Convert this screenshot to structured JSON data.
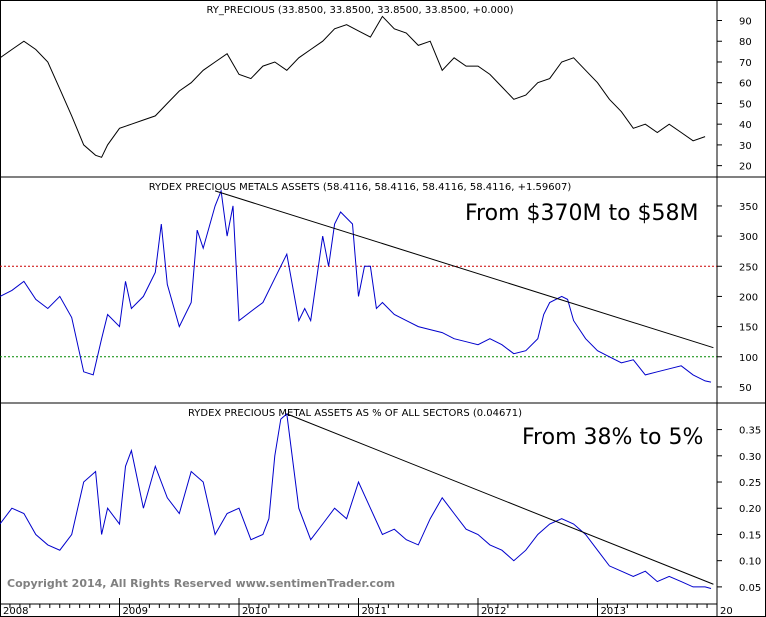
{
  "chart_data": [
    {
      "type": "line",
      "title": "RY_PRECIOUS (33.8500, 33.8500, 33.8500, 33.8500, +0.000)",
      "y_ticks": [
        20,
        30,
        40,
        50,
        60,
        70,
        80,
        90
      ],
      "ylim": [
        15,
        97
      ],
      "color": "#000000",
      "series": [
        {
          "x": [
            2008.0,
            2008.1,
            2008.2,
            2008.3,
            2008.4,
            2008.5,
            2008.6,
            2008.7,
            2008.8,
            2008.85,
            2008.9,
            2009.0,
            2009.1,
            2009.2,
            2009.3,
            2009.4,
            2009.5,
            2009.6,
            2009.7,
            2009.8,
            2009.9,
            2010.0,
            2010.1,
            2010.2,
            2010.3,
            2010.4,
            2010.5,
            2010.6,
            2010.7,
            2010.8,
            2010.9,
            2011.0,
            2011.1,
            2011.2,
            2011.3,
            2011.4,
            2011.5,
            2011.6,
            2011.7,
            2011.8,
            2011.9,
            2012.0,
            2012.1,
            2012.2,
            2012.3,
            2012.4,
            2012.5,
            2012.6,
            2012.7,
            2012.8,
            2012.9,
            2013.0,
            2013.1,
            2013.2,
            2013.3,
            2013.4,
            2013.5,
            2013.6,
            2013.7,
            2013.8,
            2013.9
          ],
          "values": [
            72,
            76,
            80,
            76,
            70,
            57,
            44,
            30,
            25,
            24,
            30,
            38,
            40,
            42,
            44,
            50,
            56,
            60,
            66,
            70,
            74,
            64,
            62,
            68,
            70,
            66,
            72,
            76,
            80,
            86,
            88,
            85,
            82,
            92,
            86,
            84,
            78,
            80,
            66,
            72,
            68,
            68,
            64,
            58,
            52,
            54,
            60,
            62,
            70,
            72,
            66,
            60,
            52,
            46,
            38,
            40,
            36,
            40,
            36,
            32,
            34
          ]
        }
      ]
    },
    {
      "type": "line",
      "title": "RYDEX PRECIOUS METALS ASSETS (58.4116, 58.4116, 58.4116, 58.4116, +1.59607)",
      "annotation": "From $370M to $58M",
      "y_ticks": [
        50,
        100,
        150,
        200,
        250,
        300,
        350
      ],
      "ylim": [
        25,
        393
      ],
      "reference_lines": [
        {
          "value": 250,
          "color": "#cc0000"
        },
        {
          "value": 100,
          "color": "#008800"
        }
      ],
      "trendline": {
        "x": [
          2009.8,
          2013.97
        ],
        "values": [
          375,
          115
        ]
      },
      "color": "#0000cc",
      "series": [
        {
          "x": [
            2008.0,
            2008.1,
            2008.2,
            2008.3,
            2008.4,
            2008.5,
            2008.6,
            2008.7,
            2008.78,
            2008.85,
            2008.9,
            2009.0,
            2009.05,
            2009.1,
            2009.2,
            2009.3,
            2009.35,
            2009.4,
            2009.5,
            2009.6,
            2009.65,
            2009.7,
            2009.8,
            2009.85,
            2009.9,
            2009.95,
            2010.0,
            2010.1,
            2010.2,
            2010.3,
            2010.4,
            2010.5,
            2010.55,
            2010.6,
            2010.7,
            2010.75,
            2010.8,
            2010.85,
            2010.95,
            2011.0,
            2011.05,
            2011.1,
            2011.15,
            2011.2,
            2011.3,
            2011.4,
            2011.5,
            2011.6,
            2011.7,
            2011.8,
            2011.9,
            2012.0,
            2012.1,
            2012.2,
            2012.3,
            2012.4,
            2012.5,
            2012.55,
            2012.6,
            2012.7,
            2012.75,
            2012.8,
            2012.9,
            2013.0,
            2013.1,
            2013.2,
            2013.3,
            2013.4,
            2013.5,
            2013.6,
            2013.7,
            2013.8,
            2013.9,
            2013.95
          ],
          "values": [
            200,
            210,
            225,
            195,
            180,
            200,
            165,
            75,
            70,
            130,
            170,
            150,
            225,
            180,
            200,
            240,
            320,
            220,
            150,
            190,
            310,
            280,
            350,
            375,
            300,
            350,
            160,
            175,
            190,
            230,
            270,
            160,
            180,
            160,
            300,
            250,
            320,
            340,
            320,
            200,
            250,
            250,
            180,
            190,
            170,
            160,
            150,
            145,
            140,
            130,
            125,
            120,
            130,
            120,
            105,
            110,
            130,
            170,
            190,
            200,
            195,
            160,
            130,
            110,
            100,
            90,
            95,
            70,
            75,
            80,
            85,
            70,
            60,
            58
          ]
        }
      ]
    },
    {
      "type": "line",
      "title": "RYDEX PRECIOUS METAL ASSETS AS % OF ALL SECTORS (0.04671)",
      "annotation": "From 38% to 5%",
      "y_ticks": [
        0.05,
        0.1,
        0.15,
        0.2,
        0.25,
        0.3,
        0.35
      ],
      "ylim": [
        0.025,
        0.395
      ],
      "trendline": {
        "x": [
          2010.4,
          2013.97
        ],
        "values": [
          0.38,
          0.055
        ]
      },
      "color": "#0000cc",
      "series": [
        {
          "x": [
            2008.0,
            2008.1,
            2008.2,
            2008.3,
            2008.4,
            2008.5,
            2008.6,
            2008.7,
            2008.8,
            2008.85,
            2008.9,
            2009.0,
            2009.05,
            2009.1,
            2009.2,
            2009.3,
            2009.4,
            2009.5,
            2009.6,
            2009.7,
            2009.8,
            2009.9,
            2010.0,
            2010.1,
            2010.2,
            2010.25,
            2010.3,
            2010.35,
            2010.4,
            2010.5,
            2010.6,
            2010.7,
            2010.8,
            2010.9,
            2011.0,
            2011.1,
            2011.2,
            2011.3,
            2011.4,
            2011.5,
            2011.6,
            2011.7,
            2011.8,
            2011.9,
            2012.0,
            2012.1,
            2012.2,
            2012.3,
            2012.4,
            2012.5,
            2012.6,
            2012.7,
            2012.8,
            2012.9,
            2013.0,
            2013.1,
            2013.2,
            2013.3,
            2013.4,
            2013.5,
            2013.6,
            2013.7,
            2013.8,
            2013.9,
            2013.95
          ],
          "values": [
            0.17,
            0.2,
            0.19,
            0.15,
            0.13,
            0.12,
            0.15,
            0.25,
            0.27,
            0.15,
            0.2,
            0.17,
            0.28,
            0.31,
            0.2,
            0.28,
            0.22,
            0.19,
            0.27,
            0.25,
            0.15,
            0.19,
            0.2,
            0.14,
            0.15,
            0.18,
            0.3,
            0.37,
            0.38,
            0.2,
            0.14,
            0.17,
            0.2,
            0.18,
            0.25,
            0.2,
            0.15,
            0.16,
            0.14,
            0.13,
            0.18,
            0.22,
            0.19,
            0.16,
            0.15,
            0.13,
            0.12,
            0.1,
            0.12,
            0.15,
            0.17,
            0.18,
            0.17,
            0.15,
            0.12,
            0.09,
            0.08,
            0.07,
            0.08,
            0.06,
            0.07,
            0.06,
            0.05,
            0.05,
            0.047
          ]
        }
      ]
    }
  ],
  "x_axis": {
    "labels": [
      "2008",
      "2009",
      "2010",
      "2011",
      "2012",
      "2013",
      "20"
    ],
    "range": [
      2008.0,
      2014.0
    ]
  },
  "copyright": "Copyright 2014, All Rights Reserved  www.sentimenTrader.com"
}
